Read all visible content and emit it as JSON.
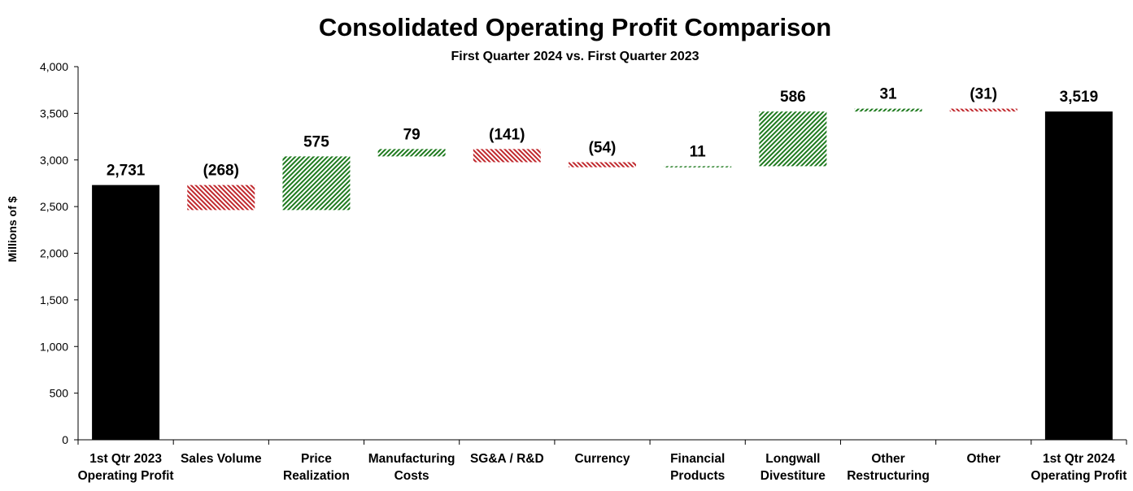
{
  "chart_data": {
    "type": "waterfall",
    "title": "Consolidated Operating Profit Comparison",
    "subtitle": "First Quarter 2024 vs. First Quarter 2023",
    "ylabel": "Millions of $",
    "xlabel": "",
    "ylim": [
      0,
      4000
    ],
    "yticks": [
      0,
      500,
      1000,
      1500,
      2000,
      2500,
      3000,
      3500,
      4000
    ],
    "ytick_labels": [
      "0",
      "500",
      "1,000",
      "1,500",
      "2,000",
      "2,500",
      "3,000",
      "3,500",
      "4,000"
    ],
    "grid": false,
    "legend": "none",
    "colors": {
      "total": "#000000",
      "increase": "#1e7a1e",
      "decrease": "#c0282d"
    },
    "categories": [
      {
        "label": [
          "1st Qtr 2023",
          "Operating Profit"
        ],
        "value": 2731,
        "kind": "total",
        "data_label": "2,731"
      },
      {
        "label": [
          "Sales Volume"
        ],
        "value": -268,
        "kind": "delta",
        "data_label": "(268)"
      },
      {
        "label": [
          "Price",
          "Realization"
        ],
        "value": 575,
        "kind": "delta",
        "data_label": "575"
      },
      {
        "label": [
          "Manufacturing",
          "Costs"
        ],
        "value": 79,
        "kind": "delta",
        "data_label": "79"
      },
      {
        "label": [
          "SG&A / R&D"
        ],
        "value": -141,
        "kind": "delta",
        "data_label": "(141)"
      },
      {
        "label": [
          "Currency"
        ],
        "value": -54,
        "kind": "delta",
        "data_label": "(54)"
      },
      {
        "label": [
          "Financial",
          "Products"
        ],
        "value": 11,
        "kind": "delta",
        "data_label": "11"
      },
      {
        "label": [
          "Longwall",
          "Divestiture"
        ],
        "value": 586,
        "kind": "delta",
        "data_label": "586"
      },
      {
        "label": [
          "Other",
          "Restructuring"
        ],
        "value": 31,
        "kind": "delta",
        "data_label": "31"
      },
      {
        "label": [
          "Other"
        ],
        "value": -31,
        "kind": "delta",
        "data_label": "(31)"
      },
      {
        "label": [
          "1st Qtr 2024",
          "Operating Profit"
        ],
        "value": 3519,
        "kind": "total",
        "data_label": "3,519"
      }
    ]
  }
}
